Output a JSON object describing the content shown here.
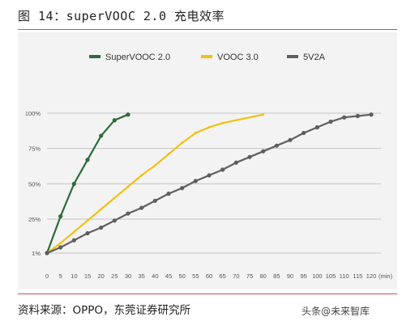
{
  "figure": {
    "title": "图 14：superVOOC 2.0 充电效率",
    "source": "资料来源：OPPO，东莞证券研究所",
    "watermark": "头条@未来智库"
  },
  "chart_data": {
    "type": "line",
    "title": "",
    "xlabel": "",
    "ylabel": "",
    "x_unit": "(min)",
    "xlim": [
      0,
      120
    ],
    "ylim": [
      1,
      100
    ],
    "x_ticks": [
      0,
      5,
      10,
      15,
      20,
      25,
      30,
      35,
      40,
      45,
      50,
      55,
      60,
      65,
      70,
      75,
      80,
      85,
      90,
      95,
      100,
      105,
      110,
      115,
      120
    ],
    "y_ticks": [
      {
        "value": 1,
        "label": "1%"
      },
      {
        "value": 25,
        "label": "25%"
      },
      {
        "value": 50,
        "label": "50%"
      },
      {
        "value": 75,
        "label": "75%"
      },
      {
        "value": 100,
        "label": "100%"
      }
    ],
    "grid": "horizontal",
    "legend_position": "top",
    "series": [
      {
        "name": "SuperVOOC 2.0",
        "color": "#2e6b3a",
        "markers": true,
        "points": [
          [
            0,
            1
          ],
          [
            5,
            27
          ],
          [
            10,
            50
          ],
          [
            15,
            67
          ],
          [
            20,
            84
          ],
          [
            25,
            95
          ],
          [
            30,
            99
          ]
        ]
      },
      {
        "name": "VOOC 3.0",
        "color": "#f2c010",
        "markers": false,
        "points": [
          [
            0,
            1
          ],
          [
            5,
            8
          ],
          [
            10,
            16
          ],
          [
            15,
            24
          ],
          [
            20,
            32
          ],
          [
            25,
            40
          ],
          [
            30,
            48
          ],
          [
            35,
            56
          ],
          [
            40,
            63
          ],
          [
            45,
            71
          ],
          [
            50,
            79
          ],
          [
            55,
            86
          ],
          [
            60,
            90
          ],
          [
            65,
            93
          ],
          [
            70,
            95
          ],
          [
            75,
            97
          ],
          [
            80,
            99
          ]
        ]
      },
      {
        "name": "5V2A",
        "color": "#5e5e5e",
        "markers": true,
        "points": [
          [
            0,
            1
          ],
          [
            5,
            5
          ],
          [
            10,
            10
          ],
          [
            15,
            15
          ],
          [
            20,
            19
          ],
          [
            25,
            24
          ],
          [
            30,
            29
          ],
          [
            35,
            33
          ],
          [
            40,
            38
          ],
          [
            45,
            43
          ],
          [
            50,
            47
          ],
          [
            55,
            52
          ],
          [
            60,
            56
          ],
          [
            65,
            60
          ],
          [
            70,
            65
          ],
          [
            75,
            69
          ],
          [
            80,
            73
          ],
          [
            85,
            77
          ],
          [
            90,
            81
          ],
          [
            95,
            86
          ],
          [
            100,
            90
          ],
          [
            105,
            94
          ],
          [
            110,
            97
          ],
          [
            115,
            98
          ],
          [
            120,
            99
          ]
        ]
      }
    ]
  }
}
